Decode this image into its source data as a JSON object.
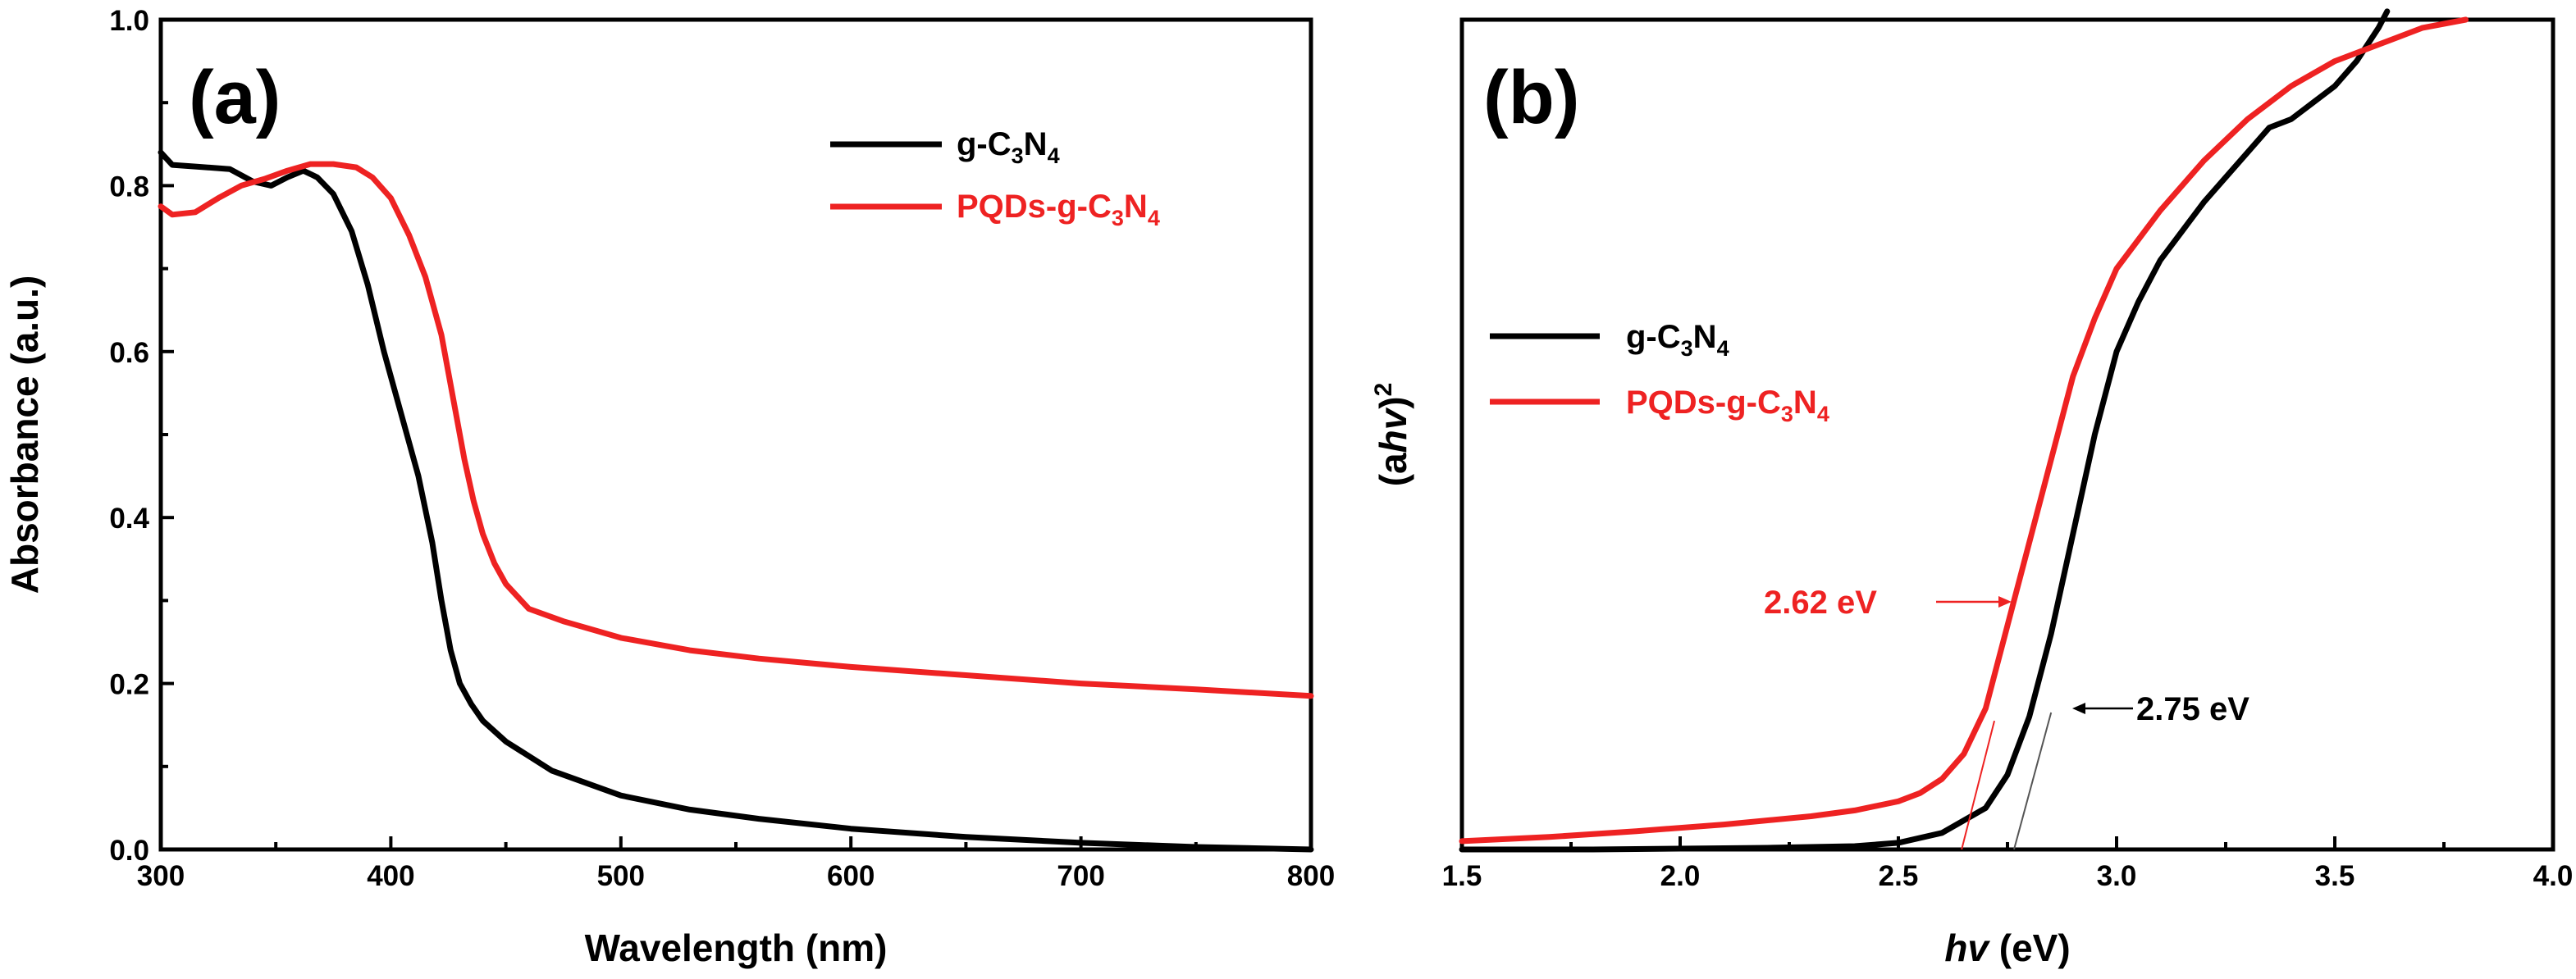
{
  "colors": {
    "g_c3n4": "#000000",
    "pqds": "#ee2222",
    "axis": "#000000"
  },
  "chart_data": [
    {
      "type": "line",
      "panel": "(a)",
      "xlabel": "Wavelength (nm)",
      "ylabel": "Absorbance (a.u.)",
      "xlim": [
        300,
        800
      ],
      "ylim": [
        0.0,
        1.0
      ],
      "xticks": [
        "300",
        "400",
        "500",
        "600",
        "700",
        "800"
      ],
      "yticks": [
        "0.0",
        "0.2",
        "0.4",
        "0.6",
        "0.8",
        "1.0"
      ],
      "legend": [
        "g-C3N4",
        "PQDs-g-C3N4"
      ],
      "legend_position": "top-right",
      "series": [
        {
          "name": "g-C3N4",
          "color_key": "g_c3n4",
          "x": [
            300,
            305,
            315,
            330,
            340,
            348,
            355,
            362,
            368,
            375,
            383,
            390,
            397,
            405,
            412,
            418,
            422,
            426,
            430,
            435,
            440,
            450,
            470,
            500,
            530,
            560,
            600,
            650,
            700,
            750,
            800
          ],
          "y": [
            0.84,
            0.825,
            0.823,
            0.82,
            0.805,
            0.8,
            0.81,
            0.818,
            0.81,
            0.79,
            0.745,
            0.68,
            0.6,
            0.52,
            0.45,
            0.37,
            0.3,
            0.24,
            0.2,
            0.175,
            0.155,
            0.13,
            0.095,
            0.065,
            0.048,
            0.037,
            0.025,
            0.015,
            0.008,
            0.003,
            0.0
          ]
        },
        {
          "name": "PQDs-g-C3N4",
          "color_key": "pqds",
          "x": [
            300,
            305,
            315,
            325,
            335,
            345,
            355,
            365,
            375,
            385,
            392,
            400,
            408,
            415,
            422,
            428,
            432,
            436,
            440,
            445,
            450,
            460,
            475,
            500,
            530,
            560,
            600,
            650,
            700,
            750,
            800
          ],
          "y": [
            0.775,
            0.765,
            0.768,
            0.785,
            0.8,
            0.808,
            0.818,
            0.826,
            0.826,
            0.822,
            0.81,
            0.785,
            0.74,
            0.69,
            0.62,
            0.53,
            0.47,
            0.42,
            0.38,
            0.345,
            0.32,
            0.29,
            0.275,
            0.255,
            0.24,
            0.23,
            0.22,
            0.21,
            0.2,
            0.193,
            0.185
          ]
        }
      ]
    },
    {
      "type": "line",
      "panel": "(b)",
      "xlabel": "hv (eV)",
      "xlabel_italic": "hv",
      "xlabel_rest": " (eV)",
      "ylabel_parts": [
        "(a",
        "hv",
        ")",
        "2"
      ],
      "xlim": [
        1.5,
        4.0
      ],
      "ylim": [
        0.0,
        1.0
      ],
      "xticks": [
        "1.5",
        "2.0",
        "2.5",
        "3.0",
        "3.5",
        "4.0"
      ],
      "legend": [
        "g-C3N4",
        "PQDs-g-C3N4"
      ],
      "legend_position": "center-left",
      "annotations": [
        {
          "text": "2.62 eV",
          "color_key": "pqds",
          "points_to_x": 2.8
        },
        {
          "text": "2.75 eV",
          "color_key": "g_c3n4",
          "points_to_x": 2.86
        }
      ],
      "tangents": [
        {
          "series": "PQDs-g-C3N4",
          "x": [
            2.645,
            2.72
          ],
          "y": [
            0.0,
            0.155
          ]
        },
        {
          "series": "g-C3N4",
          "x": [
            2.765,
            2.85
          ],
          "y": [
            0.0,
            0.165
          ]
        }
      ],
      "series": [
        {
          "name": "g-C3N4",
          "color_key": "g_c3n4",
          "x": [
            1.5,
            1.8,
            2.0,
            2.2,
            2.4,
            2.5,
            2.6,
            2.7,
            2.75,
            2.8,
            2.85,
            2.9,
            2.95,
            3.0,
            3.05,
            3.1,
            3.2,
            3.3,
            3.35,
            3.4,
            3.45,
            3.5,
            3.55,
            3.6,
            3.62
          ],
          "y": [
            0.0,
            0.0,
            0.001,
            0.002,
            0.004,
            0.008,
            0.02,
            0.05,
            0.09,
            0.16,
            0.26,
            0.38,
            0.5,
            0.6,
            0.66,
            0.71,
            0.78,
            0.84,
            0.87,
            0.88,
            0.9,
            0.92,
            0.95,
            0.99,
            1.01
          ]
        },
        {
          "name": "PQDs-g-C3N4",
          "color_key": "pqds",
          "x": [
            1.5,
            1.7,
            1.9,
            2.1,
            2.3,
            2.4,
            2.5,
            2.55,
            2.6,
            2.65,
            2.7,
            2.75,
            2.8,
            2.85,
            2.9,
            2.95,
            3.0,
            3.1,
            3.2,
            3.3,
            3.4,
            3.5,
            3.6,
            3.7,
            3.8
          ],
          "y": [
            0.01,
            0.015,
            0.022,
            0.03,
            0.04,
            0.047,
            0.058,
            0.068,
            0.085,
            0.115,
            0.17,
            0.27,
            0.37,
            0.47,
            0.57,
            0.64,
            0.7,
            0.77,
            0.83,
            0.88,
            0.92,
            0.95,
            0.97,
            0.99,
            1.0
          ]
        }
      ]
    }
  ]
}
